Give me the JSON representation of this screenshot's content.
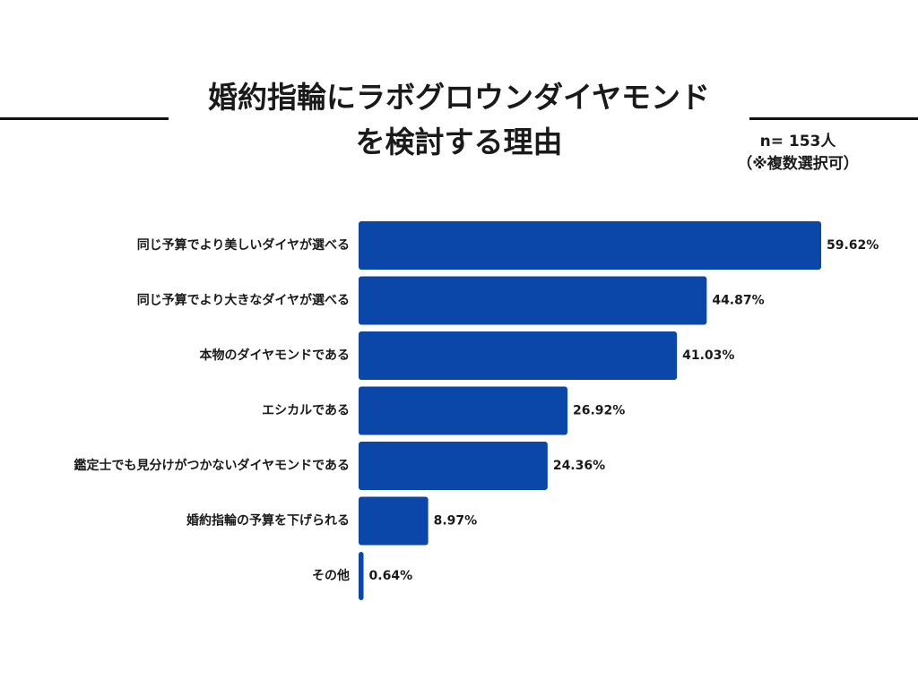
{
  "title": {
    "line1": "婚約指輪にラボグロウンダイヤモンド",
    "line2": "を検討する理由"
  },
  "sample_note": {
    "n": "n= 153人",
    "multi": "（※複数選択可）"
  },
  "colors": {
    "bar": "#0a47a9",
    "text": "#1a1a1a",
    "rule": "#111111"
  },
  "chart_data": {
    "type": "bar",
    "orientation": "horizontal",
    "categories": [
      "同じ予算でより美しいダイヤが選べる",
      "同じ予算でより大きなダイヤが選べる",
      "本物のダイヤモンドである",
      "エシカルである",
      "鑑定士でも見分けがつかないダイヤモンドである",
      "婚約指輪の予算を下げられる",
      "その他"
    ],
    "values": [
      59.62,
      44.87,
      41.03,
      26.92,
      24.36,
      8.97,
      0.64
    ],
    "value_labels": [
      "59.62%",
      "44.87%",
      "41.03%",
      "26.92%",
      "24.36%",
      "8.97%",
      "0.64%"
    ],
    "unit": "%",
    "xlim": [
      0,
      59.62
    ],
    "grid": false,
    "legend": "none"
  }
}
